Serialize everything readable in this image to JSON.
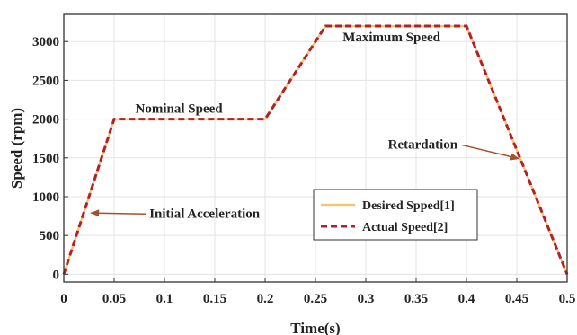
{
  "chart_data": {
    "type": "line",
    "title": "",
    "xlabel": "Time(s)",
    "ylabel": "Speed (rpm)",
    "xlim": [
      0,
      0.5
    ],
    "ylim": [
      -100,
      3350
    ],
    "xticks": [
      "0",
      "0.05",
      "0.1",
      "0.15",
      "0.2",
      "0.25",
      "0.3",
      "0.35",
      "0.4",
      "0.45",
      "0.5"
    ],
    "yticks": [
      "0",
      "500",
      "1000",
      "1500",
      "2000",
      "2500",
      "3000"
    ],
    "grid": true,
    "legend_position": "lower-right",
    "series": [
      {
        "name": "Desired Spped[1]",
        "color": "#f5c46a",
        "style": "solid",
        "x": [
          0,
          0.05,
          0.2,
          0.26,
          0.4,
          0.5
        ],
        "y": [
          0,
          2000,
          2000,
          3200,
          3200,
          0
        ]
      },
      {
        "name": "Actual Speed[2]",
        "color": "#b3202a",
        "style": "dashed",
        "x": [
          0,
          0.05,
          0.2,
          0.26,
          0.4,
          0.5
        ],
        "y": [
          0,
          2000,
          2000,
          3200,
          3200,
          0
        ]
      }
    ],
    "annotations": [
      {
        "text": "Nominal Speed",
        "x": 0.071,
        "y": 2080,
        "arrow": false
      },
      {
        "text": "Maximum Speed",
        "x": 0.277,
        "y": 3000,
        "arrow": false
      },
      {
        "text": "Retardation",
        "x": 0.322,
        "y": 1620,
        "arrow": true,
        "arrow_to_x": 0.452,
        "arrow_to_y": 1490
      },
      {
        "text": "Initial Acceleration",
        "x": 0.085,
        "y": 730,
        "arrow": true,
        "arrow_to_x": 0.027,
        "arrow_to_y": 790
      }
    ],
    "annotation_color": "#a0522d"
  }
}
